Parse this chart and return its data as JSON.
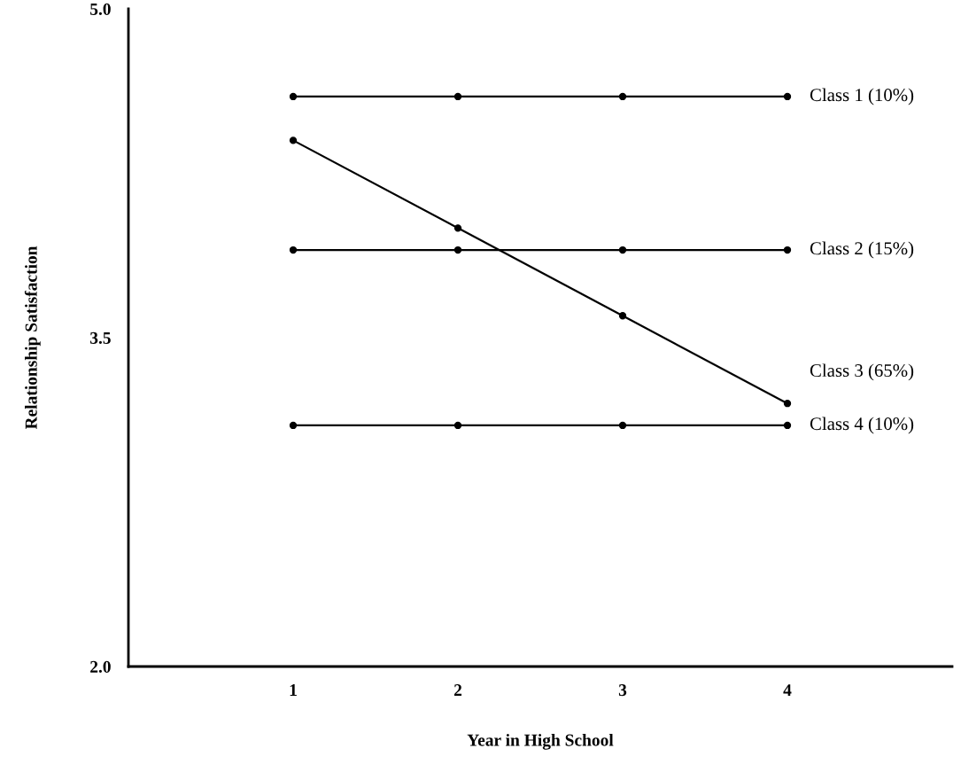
{
  "chart_data": {
    "type": "line",
    "xlabel": "Year in High School",
    "ylabel": "Relationship Satisfaction",
    "x": [
      1,
      2,
      3,
      4
    ],
    "xlim": [
      0,
      5
    ],
    "xticks": [
      1,
      2,
      3,
      4
    ],
    "ylim": [
      2.0,
      5.0
    ],
    "yticks": [
      {
        "value": 2.0,
        "label": "2.0"
      },
      {
        "value": 3.5,
        "label": "3.5"
      },
      {
        "value": 5.0,
        "label": "5.0"
      }
    ],
    "marker": "circle",
    "line_style": "solid",
    "grid": false,
    "legend": false,
    "series": [
      {
        "name": "Class 1 (10%)",
        "color": "#000000",
        "values": [
          4.6,
          4.6,
          4.6,
          4.6
        ]
      },
      {
        "name": "Class 2 (15%)",
        "color": "#000000",
        "values": [
          3.9,
          3.9,
          3.9,
          3.9
        ]
      },
      {
        "name": "Class 3 (65%)",
        "color": "#000000",
        "values": [
          4.4,
          4.0,
          3.6,
          3.2
        ]
      },
      {
        "name": "Class 4 (10%)",
        "color": "#000000",
        "values": [
          3.1,
          3.1,
          3.1,
          3.1
        ]
      }
    ]
  }
}
